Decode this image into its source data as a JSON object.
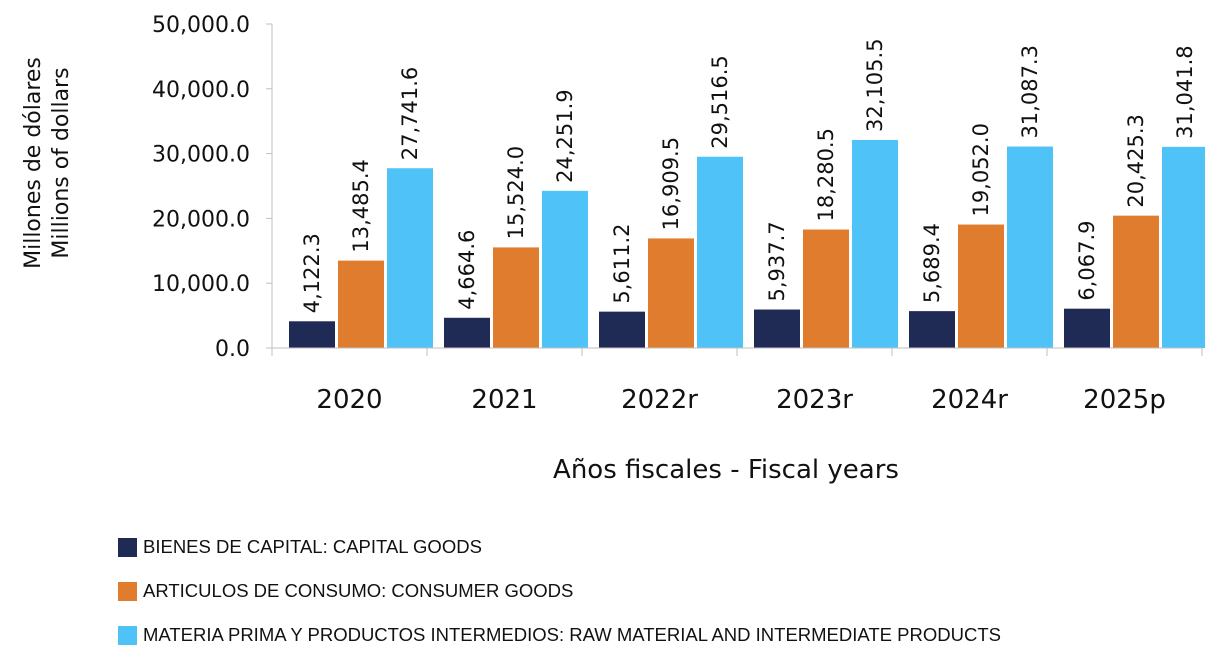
{
  "chart_data": {
    "type": "bar",
    "categories": [
      "2020",
      "2021",
      "2022r",
      "2023r",
      "2024r",
      "2025p"
    ],
    "series": [
      {
        "name": "BIENES DE CAPITAL: CAPITAL GOODS",
        "color": "#1f2a55",
        "values": [
          4122.3,
          4664.6,
          5611.2,
          5937.7,
          5689.4,
          6067.9
        ],
        "labels": [
          "4,122.3",
          "4,664.6",
          "5,611.2",
          "5,937.7",
          "5,689.4",
          "6,067.9"
        ]
      },
      {
        "name": "ARTICULOS DE CONSUMO: CONSUMER GOODS",
        "color": "#e07c2e",
        "values": [
          13485.4,
          15524.0,
          16909.5,
          18280.5,
          19052.0,
          20425.3
        ],
        "labels": [
          "13,485.4",
          "15,524.0",
          "16,909.5",
          "18,280.5",
          "19,052.0",
          "20,425.3"
        ]
      },
      {
        "name": "MATERIA PRIMA Y PRODUCTOS INTERMEDIOS: RAW MATERIAL AND INTERMEDIATE PRODUCTS",
        "color": "#4fc3f7",
        "values": [
          27741.6,
          24251.9,
          29516.5,
          32105.5,
          31087.3,
          31041.8
        ],
        "labels": [
          "27,741.6",
          "24,251.9",
          "29,516.5",
          "32,105.5",
          "31,087.3",
          "31,041.8"
        ]
      }
    ],
    "ylim": [
      0,
      50000
    ],
    "yticks": [
      0,
      10000,
      20000,
      30000,
      40000,
      50000
    ],
    "ytick_labels": [
      "0.0",
      "10,000.0",
      "20,000.0",
      "30,000.0",
      "40,000.0",
      "50,000.0"
    ],
    "xlabel": "Años fiscales - Fiscal years",
    "ylabel_lines": [
      "Millones de dólares",
      "Millions of dollars"
    ],
    "grid": false,
    "legend_position": "bottom-left"
  }
}
